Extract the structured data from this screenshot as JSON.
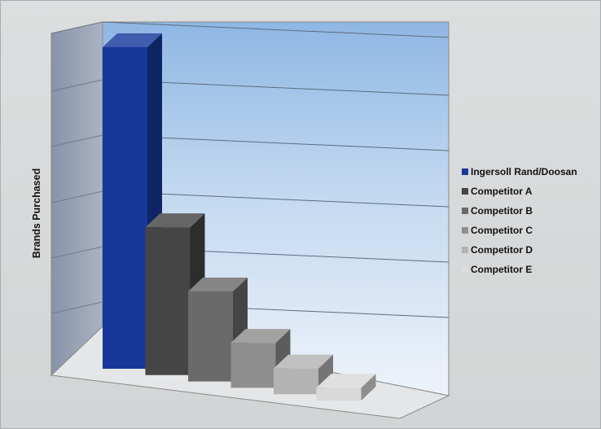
{
  "chart_data": {
    "type": "bar",
    "three_d": true,
    "ylabel": "Brands Purchased",
    "xlabel": "",
    "title": "",
    "categories": [
      "Ingersoll Rand/Doosan",
      "Competitor A",
      "Competitor B",
      "Competitor C",
      "Competitor D",
      "Competitor E"
    ],
    "values": [
      100,
      46,
      28,
      14,
      8,
      4
    ],
    "colors": [
      "#16389a",
      "#454545",
      "#6a6a6a",
      "#8e8e8e",
      "#b3b3b3",
      "#d9d9d9"
    ],
    "grid": true,
    "ticks_visible": false,
    "legend_position": "right"
  },
  "legend": {
    "items": [
      {
        "label": "Ingersoll Rand/Doosan",
        "color": "#16389a"
      },
      {
        "label": "Competitor A",
        "color": "#454545"
      },
      {
        "label": "Competitor B",
        "color": "#6a6a6a"
      },
      {
        "label": "Competitor C",
        "color": "#8e8e8e"
      },
      {
        "label": "Competitor D",
        "color": "#b3b3b3"
      },
      {
        "label": "Competitor E",
        "color": "#dedede"
      }
    ]
  }
}
